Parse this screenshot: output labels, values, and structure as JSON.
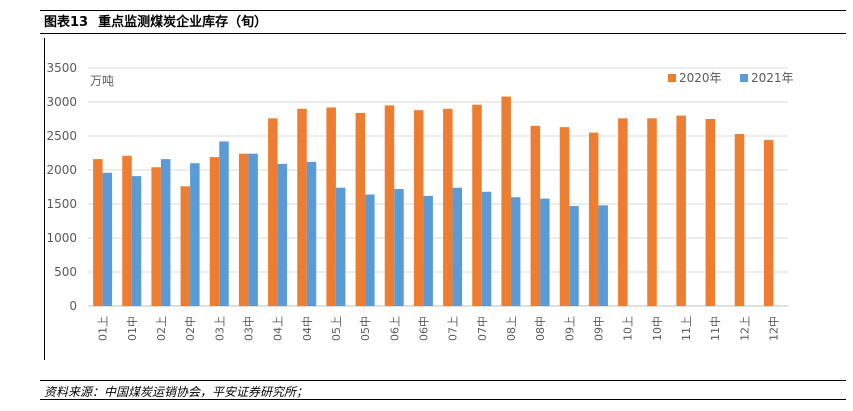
{
  "header": {
    "figure_label": "图表13",
    "figure_title": "重点监测煤炭企业库存（旬）"
  },
  "source": "资料来源：中国煤炭运销协会，平安证券研究所；",
  "colors": {
    "series_2020": "#ED7D31",
    "series_2021": "#5B9BD5",
    "grid": "#D9D9D9",
    "axis": "#BFBFBF"
  },
  "chart_data": {
    "type": "bar",
    "title": "重点监测煤炭企业库存（旬）",
    "ylabel": "万吨",
    "unit_label": "万吨",
    "xlabel": "",
    "ylim": [
      0,
      3500
    ],
    "yticks": [
      0,
      500,
      1000,
      1500,
      2000,
      2500,
      3000,
      3500
    ],
    "grid": true,
    "legend": "top-right",
    "categories": [
      "01上",
      "01中",
      "02上",
      "02中",
      "03上",
      "03中",
      "04上",
      "04中",
      "05上",
      "05中",
      "06上",
      "06中",
      "07上",
      "07中",
      "08上",
      "08中",
      "09上",
      "09中",
      "10上",
      "10中",
      "11上",
      "11中",
      "12上",
      "12中"
    ],
    "series": [
      {
        "name": "2020年",
        "color": "#ED7D31",
        "values": [
          2160,
          2210,
          2040,
          1760,
          2190,
          2240,
          2760,
          2900,
          2920,
          2840,
          2950,
          2880,
          2900,
          2960,
          3080,
          2650,
          2630,
          2550,
          2760,
          2760,
          2800,
          2750,
          2530,
          2440
        ]
      },
      {
        "name": "2021年",
        "color": "#5B9BD5",
        "values": [
          1960,
          1910,
          2160,
          2100,
          2420,
          2240,
          2090,
          2120,
          1740,
          1640,
          1720,
          1620,
          1740,
          1680,
          1600,
          1580,
          1470,
          1480,
          null,
          null,
          null,
          null,
          null,
          null
        ]
      }
    ]
  }
}
